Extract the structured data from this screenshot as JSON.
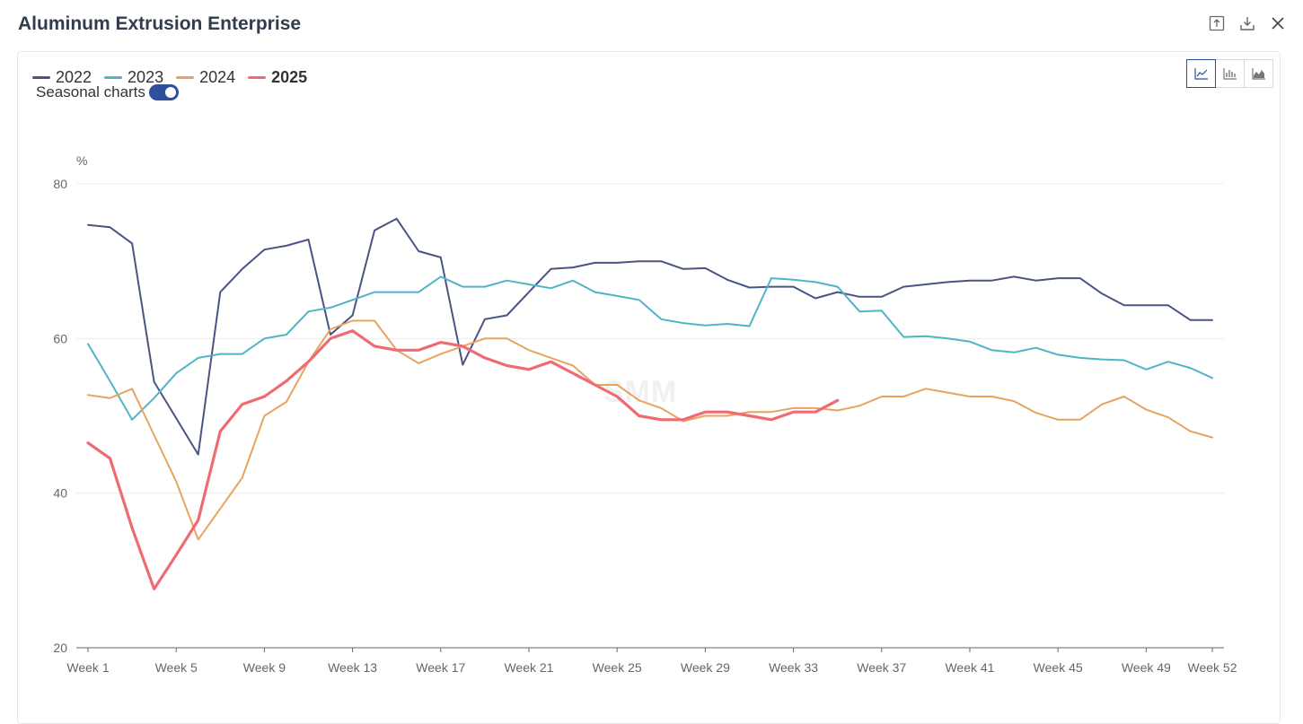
{
  "window": {
    "title": "Aluminum Extrusion Enterprise"
  },
  "header_icons": [
    "export-icon",
    "download-icon",
    "close-icon"
  ],
  "controls": {
    "seasonal_label": "Seasonal charts",
    "seasonal_on": true
  },
  "chart_type_buttons": [
    "line-chart-icon",
    "bar-chart-icon",
    "area-chart-icon"
  ],
  "watermark": "SMM",
  "chart_data": {
    "type": "line",
    "unit": "%",
    "ylim": [
      20,
      80
    ],
    "yticks": [
      20,
      40,
      60,
      80
    ],
    "grid": true,
    "legend_position": "top-left",
    "x_tick_labels": [
      "Week 1",
      "Week 5",
      "Week 9",
      "Week 13",
      "Week 17",
      "Week 21",
      "Week 25",
      "Week 29",
      "Week 33",
      "Week 37",
      "Week 41",
      "Week 45",
      "Week 49",
      "Week 52"
    ],
    "x_tick_weeks": [
      1,
      5,
      9,
      13,
      17,
      21,
      25,
      29,
      33,
      37,
      41,
      45,
      49,
      52
    ],
    "series": [
      {
        "name": "2022",
        "color": "#4a5484",
        "values": [
          74.7,
          74.4,
          72.3,
          54.4,
          49.7,
          45.0,
          66.0,
          69.0,
          71.5,
          72.0,
          72.8,
          60.5,
          63.0,
          74.0,
          75.5,
          71.3,
          70.5,
          56.6,
          62.5,
          63.0,
          66.0,
          69.0,
          69.2,
          69.8,
          69.8,
          70.0,
          70.0,
          69.0,
          69.1,
          67.6,
          66.6,
          66.7,
          66.7,
          65.2,
          66.0,
          65.4,
          65.4,
          66.7,
          67.0,
          67.3,
          67.5,
          67.5,
          68.0,
          67.5,
          67.8,
          67.8,
          65.8,
          64.3,
          64.3,
          64.3,
          62.4,
          62.4
        ]
      },
      {
        "name": "2023",
        "color": "#4fb4c6",
        "values": [
          59.3,
          54.5,
          49.5,
          52.3,
          55.5,
          57.5,
          58.0,
          58.0,
          60.0,
          60.5,
          63.5,
          64.0,
          65.0,
          66.0,
          66.0,
          66.0,
          68.0,
          66.7,
          66.7,
          67.5,
          67.0,
          66.5,
          67.5,
          66.0,
          65.5,
          65.0,
          62.5,
          62.0,
          61.7,
          61.9,
          61.6,
          67.8,
          67.6,
          67.3,
          66.7,
          63.5,
          63.6,
          60.2,
          60.3,
          60.0,
          59.6,
          58.5,
          58.2,
          58.8,
          57.9,
          57.5,
          57.3,
          57.2,
          56.0,
          57.0,
          56.2,
          54.9
        ]
      },
      {
        "name": "2024",
        "color": "#e8a45e",
        "values": [
          52.7,
          52.3,
          53.5,
          47.5,
          41.5,
          34.0,
          38.0,
          42.0,
          50.0,
          51.8,
          57.0,
          61.2,
          62.3,
          62.3,
          58.5,
          56.8,
          58.0,
          59.0,
          60.0,
          60.0,
          58.5,
          57.5,
          56.5,
          54.0,
          54.0,
          52.0,
          51.0,
          49.3,
          50.0,
          50.0,
          50.5,
          50.5,
          51.0,
          51.0,
          50.7,
          51.3,
          52.5,
          52.5,
          53.5,
          53.0,
          52.5,
          52.5,
          51.9,
          50.4,
          49.5,
          49.5,
          51.5,
          52.5,
          50.8,
          49.8,
          48.0,
          47.2
        ]
      },
      {
        "name": "2025",
        "color": "#ef6b74",
        "bold": true,
        "values": [
          46.5,
          44.5,
          35.5,
          27.6,
          32.0,
          36.5,
          48.0,
          51.5,
          52.5,
          54.5,
          57.0,
          60.0,
          61.0,
          59.0,
          58.5,
          58.5,
          59.5,
          59.0,
          57.5,
          56.5,
          56.0,
          57.0,
          55.5,
          54.0,
          52.5,
          50.0,
          49.5,
          49.5,
          50.5,
          50.5,
          50.0,
          49.5,
          50.5,
          50.5,
          52.0
        ]
      }
    ]
  }
}
